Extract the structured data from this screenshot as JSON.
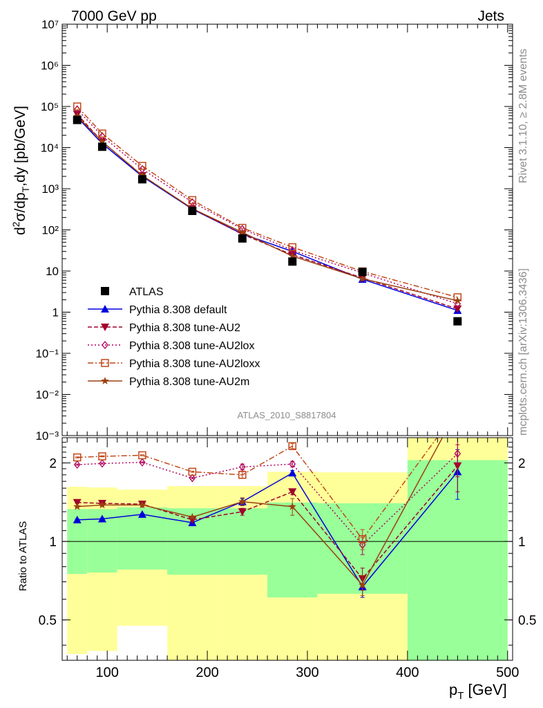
{
  "header": {
    "left": "7000 GeV pp",
    "right": "Jets"
  },
  "side_labels": {
    "rivet": "Rivet 3.1.10, ≥ 2.8M events",
    "mcplots": "mcplots.cern.ch [arXiv:1306.3436]"
  },
  "analysis_id": "ATLAS_2010_S8817804",
  "legend": {
    "items": [
      "ATLAS",
      "Pythia 8.308 default",
      "Pythia 8.308 tune-AU2",
      "Pythia 8.308 tune-AU2lox",
      "Pythia 8.308 tune-AU2loxx",
      "Pythia 8.308 tune-AU2m"
    ]
  },
  "colors": {
    "data": "#000000",
    "default": "#0000dd",
    "au2": "#a0002a",
    "au2lox": "#b0005a",
    "au2loxx": "#c0481a",
    "au2m": "#9a4010",
    "band_inner": "#99ff99",
    "band_outer": "#ffff99"
  },
  "chart_data": [
    {
      "type": "scatter",
      "scale": "log",
      "ylabel": "d²σ/dp_T,dy [pb/GeV]",
      "ylim": [
        0.001,
        10000000
      ],
      "xlim": [
        55,
        505
      ],
      "y_tick_labels": [
        "10⁻³",
        "10⁻²",
        "10⁻¹",
        "1",
        "10",
        "10²",
        "10³",
        "10⁴",
        "10⁵",
        "10⁶",
        "10⁷"
      ],
      "x": [
        70,
        95,
        135,
        185,
        235,
        285,
        355,
        450
      ],
      "series": [
        {
          "name": "ATLAS",
          "marker": "square",
          "values": [
            47000,
            10500,
            1700,
            290,
            62,
            17,
            9.5,
            0.6
          ]
        },
        {
          "name": "Pythia 8.308 default",
          "marker": "triangle-up",
          "values": [
            55000,
            12500,
            2000,
            320,
            80,
            30,
            6.3,
            1.1
          ]
        },
        {
          "name": "Pythia 8.308 tune-AU2",
          "marker": "triangle-down",
          "values": [
            65000,
            14000,
            2100,
            330,
            78,
            25,
            6.8,
            1.2
          ]
        },
        {
          "name": "Pythia 8.308 tune-AU2lox",
          "marker": "diamond",
          "values": [
            85000,
            19000,
            3000,
            470,
            105,
            32,
            9.0,
            1.6
          ]
        },
        {
          "name": "Pythia 8.308 tune-AU2loxx",
          "marker": "square-open",
          "values": [
            100000,
            22000,
            3600,
            530,
            112,
            38,
            9.8,
            2.3
          ]
        },
        {
          "name": "Pythia 8.308 tune-AU2m",
          "marker": "star",
          "values": [
            58000,
            14000,
            2100,
            330,
            87,
            23,
            6.5,
            1.9
          ]
        }
      ]
    },
    {
      "type": "line",
      "scale": "log",
      "ylabel": "Ratio to ATLAS",
      "xlabel": "p_T [GeV]",
      "ylim": [
        0.35,
        2.5
      ],
      "xlim": [
        55,
        505
      ],
      "y_tick_labels": [
        "0.5",
        "1",
        "2"
      ],
      "y_tick_values": [
        0.5,
        1,
        2
      ],
      "x_tick_labels": [
        "100",
        "200",
        "300",
        "400",
        "500"
      ],
      "x_tick_values": [
        100,
        200,
        300,
        400,
        500
      ],
      "x": [
        70,
        95,
        135,
        185,
        235,
        285,
        355,
        450
      ],
      "bands": [
        {
          "x0": 60,
          "x1": 80,
          "inner": [
            0.75,
            1.33
          ],
          "outer": [
            0.37,
            1.62
          ]
        },
        {
          "x0": 80,
          "x1": 110,
          "inner": [
            0.76,
            1.33
          ],
          "outer": [
            0.38,
            1.61
          ]
        },
        {
          "x0": 110,
          "x1": 160,
          "inner": [
            0.78,
            1.35
          ],
          "outer": [
            0.475,
            1.58
          ]
        },
        {
          "x0": 160,
          "x1": 210,
          "inner": [
            0.745,
            1.34
          ],
          "outer": [
            0.35,
            1.63
          ]
        },
        {
          "x0": 210,
          "x1": 260,
          "inner": [
            0.745,
            1.34
          ],
          "outer": [
            0.35,
            1.63
          ]
        },
        {
          "x0": 260,
          "x1": 310,
          "inner": [
            0.61,
            1.41
          ],
          "outer": [
            0.35,
            1.85
          ]
        },
        {
          "x0": 310,
          "x1": 400,
          "inner": [
            0.63,
            1.4
          ],
          "outer": [
            0.35,
            1.84
          ]
        },
        {
          "x0": 400,
          "x1": 500,
          "inner": [
            0.35,
            2.05
          ],
          "outer": [
            0.35,
            2.5
          ]
        }
      ],
      "series": [
        {
          "name": "Pythia 8.308 default",
          "marker": "triangle-up",
          "values": [
            1.21,
            1.22,
            1.27,
            1.18,
            1.42,
            1.83,
            0.67,
            1.85
          ],
          "errors": [
            0.01,
            0.01,
            0.01,
            0.01,
            0.04,
            0.04,
            0.06,
            0.4
          ]
        },
        {
          "name": "Pythia 8.308 tune-AU2",
          "marker": "triangle-down",
          "values": [
            1.41,
            1.4,
            1.39,
            1.21,
            1.3,
            1.55,
            0.72,
            1.95
          ],
          "errors": [
            0.01,
            0.01,
            0.01,
            0.01,
            0.04,
            0.04,
            0.07,
            0.4
          ]
        },
        {
          "name": "Pythia 8.308 tune-AU2lox",
          "marker": "diamond",
          "values": [
            1.97,
            1.99,
            2.01,
            1.75,
            1.93,
            1.98,
            0.97,
            2.17
          ],
          "errors": [
            0.01,
            0.01,
            0.01,
            0.01,
            0.05,
            0.05,
            0.08,
            0.4
          ]
        },
        {
          "name": "Pythia 8.308 tune-AU2loxx",
          "marker": "square-open",
          "values": [
            2.1,
            2.12,
            2.14,
            1.85,
            1.8,
            2.32,
            1.02,
            3.2
          ],
          "errors": [
            0.01,
            0.01,
            0.01,
            0.01,
            0.05,
            0.05,
            0.09,
            0.4
          ]
        },
        {
          "name": "Pythia 8.308 tune-AU2m",
          "marker": "star",
          "values": [
            1.36,
            1.38,
            1.38,
            1.24,
            1.42,
            1.36,
            0.68,
            3.2
          ],
          "errors": [
            0.01,
            0.01,
            0.01,
            0.01,
            0.05,
            0.1,
            0.06,
            0.4
          ]
        }
      ]
    }
  ]
}
